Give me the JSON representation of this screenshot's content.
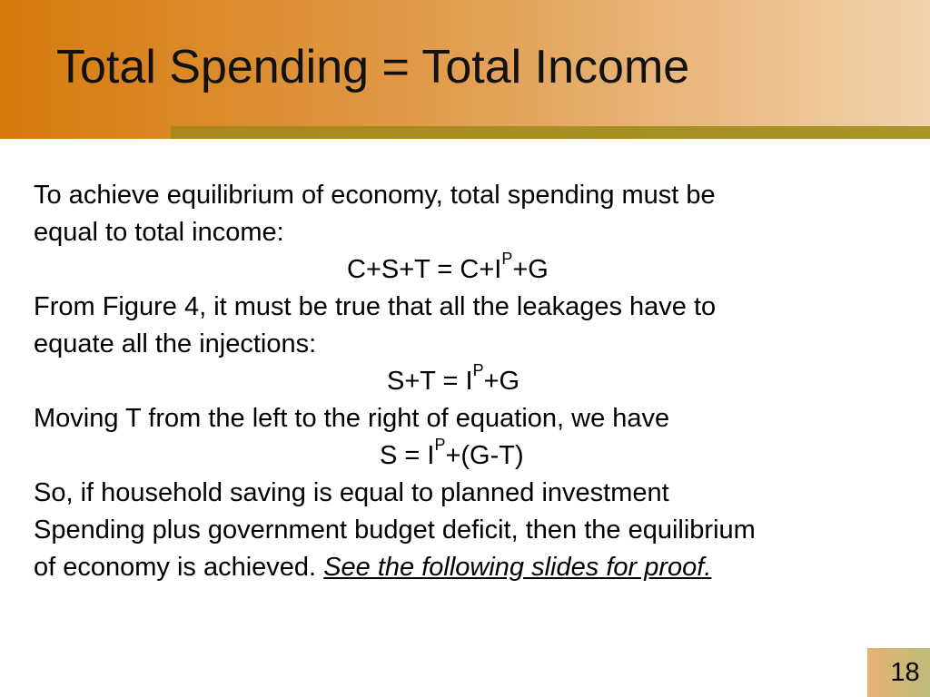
{
  "slide": {
    "title": "Total Spending = Total Income",
    "page_number": "18",
    "lines": {
      "l1": "To achieve equilibrium of economy, total spending must be",
      "l2": "equal to total income:",
      "eq1a": "C+S+T = C+I",
      "eq1sup": "P",
      "eq1b": "+G",
      "l4": "From Figure 4, it must be true that all the leakages have to",
      "l5": "equate all the injections:",
      "eq2a": "S+T = I",
      "eq2sup": "P",
      "eq2b": "+G",
      "l7": "Moving T from the left to the right of equation, we have",
      "eq3a": "S = I",
      "eq3sup": "P",
      "eq3b": "+(G-T)",
      "l9": "So, if household saving is equal to planned investment",
      "l10": "Spending plus government budget deficit, then the equilibrium",
      "l11": "of economy is achieved.",
      "link": "See the following slides for proof."
    }
  },
  "colors": {
    "header_start": "#d77a0e",
    "header_end": "#f2d2ae",
    "accent_bar": "#a8881a"
  }
}
